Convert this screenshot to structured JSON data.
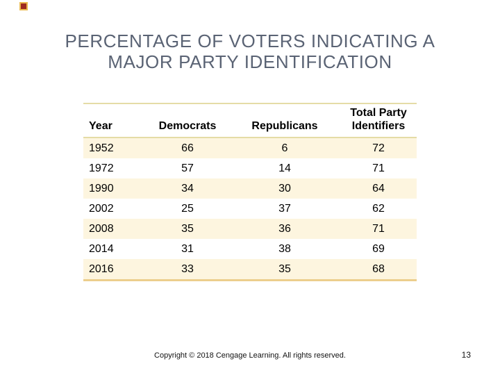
{
  "slide": {
    "title_line1": "PERCENTAGE OF VOTERS INDICATING A",
    "title_line2": "MAJOR PARTY IDENTIFICATION"
  },
  "table": {
    "headers": [
      "Year",
      "Democrats",
      "Republicans",
      "Total Party Identifiers"
    ],
    "rows": [
      [
        "1952",
        "66",
        "6",
        "72"
      ],
      [
        "1972",
        "57",
        "14",
        "71"
      ],
      [
        "1990",
        "34",
        "30",
        "64"
      ],
      [
        "2002",
        "25",
        "37",
        "62"
      ],
      [
        "2008",
        "35",
        "36",
        "71"
      ],
      [
        "2014",
        "31",
        "38",
        "69"
      ],
      [
        "2016",
        "33",
        "35",
        "68"
      ]
    ]
  },
  "footer": {
    "copyright": "Copyright © 2018 Cengage Learning. All rights reserved.",
    "page_number": "13"
  },
  "colors": {
    "title_text": "#5a6374",
    "row_highlight": "#fdf5df",
    "table_rule": "#e5dca6",
    "table_bottom_rule": "#ecce8d",
    "corner_square_fill": "#9e2a21",
    "corner_square_border": "#eab94e"
  }
}
